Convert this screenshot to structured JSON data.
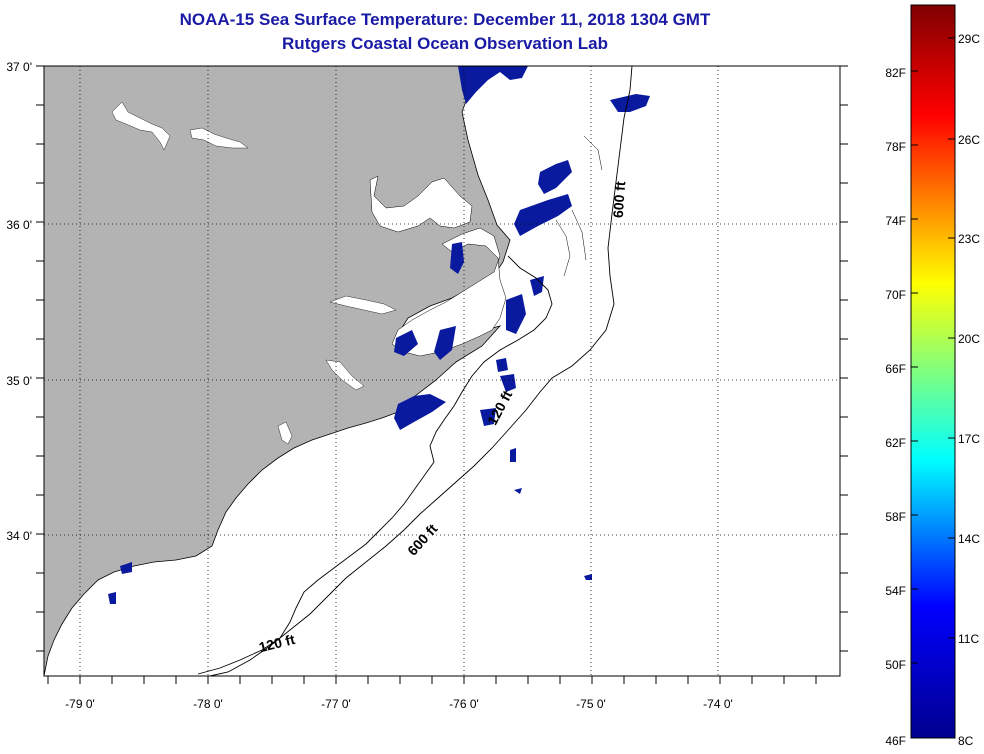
{
  "title": "NOAA-15 Sea Surface Temperature:  December 11, 2018 1304 GMT",
  "subtitle": "Rutgers Coastal Ocean Observation Lab",
  "map": {
    "lat_labels": [
      "37 0'",
      "36 0'",
      "35 0'",
      "34 0'"
    ],
    "lon_labels": [
      "-79 0'",
      "-78 0'",
      "-77 0'",
      "-76 0'",
      "-75 0'",
      "-74 0'"
    ],
    "contours": {
      "label_600_east": "600 ft",
      "label_600_south": "600 ft",
      "label_120_south": "120 ft",
      "label_120_mid": "120 ft"
    },
    "colors": {
      "land": "#b3b3b3",
      "ocean": "#ffffff",
      "cold_sst": "#0a1a9e",
      "contour": "#000000"
    }
  },
  "colorbar": {
    "f_labels": [
      "82F",
      "78F",
      "74F",
      "70F",
      "66F",
      "62F",
      "58F",
      "54F",
      "50F",
      "46F"
    ],
    "c_labels": [
      "29C",
      "26C",
      "23C",
      "20C",
      "17C",
      "14C",
      "11C",
      "8C"
    ],
    "colors": [
      "#00008f",
      "#0000ff",
      "#00ffff",
      "#ffff00",
      "#ff0000",
      "#800000"
    ]
  }
}
